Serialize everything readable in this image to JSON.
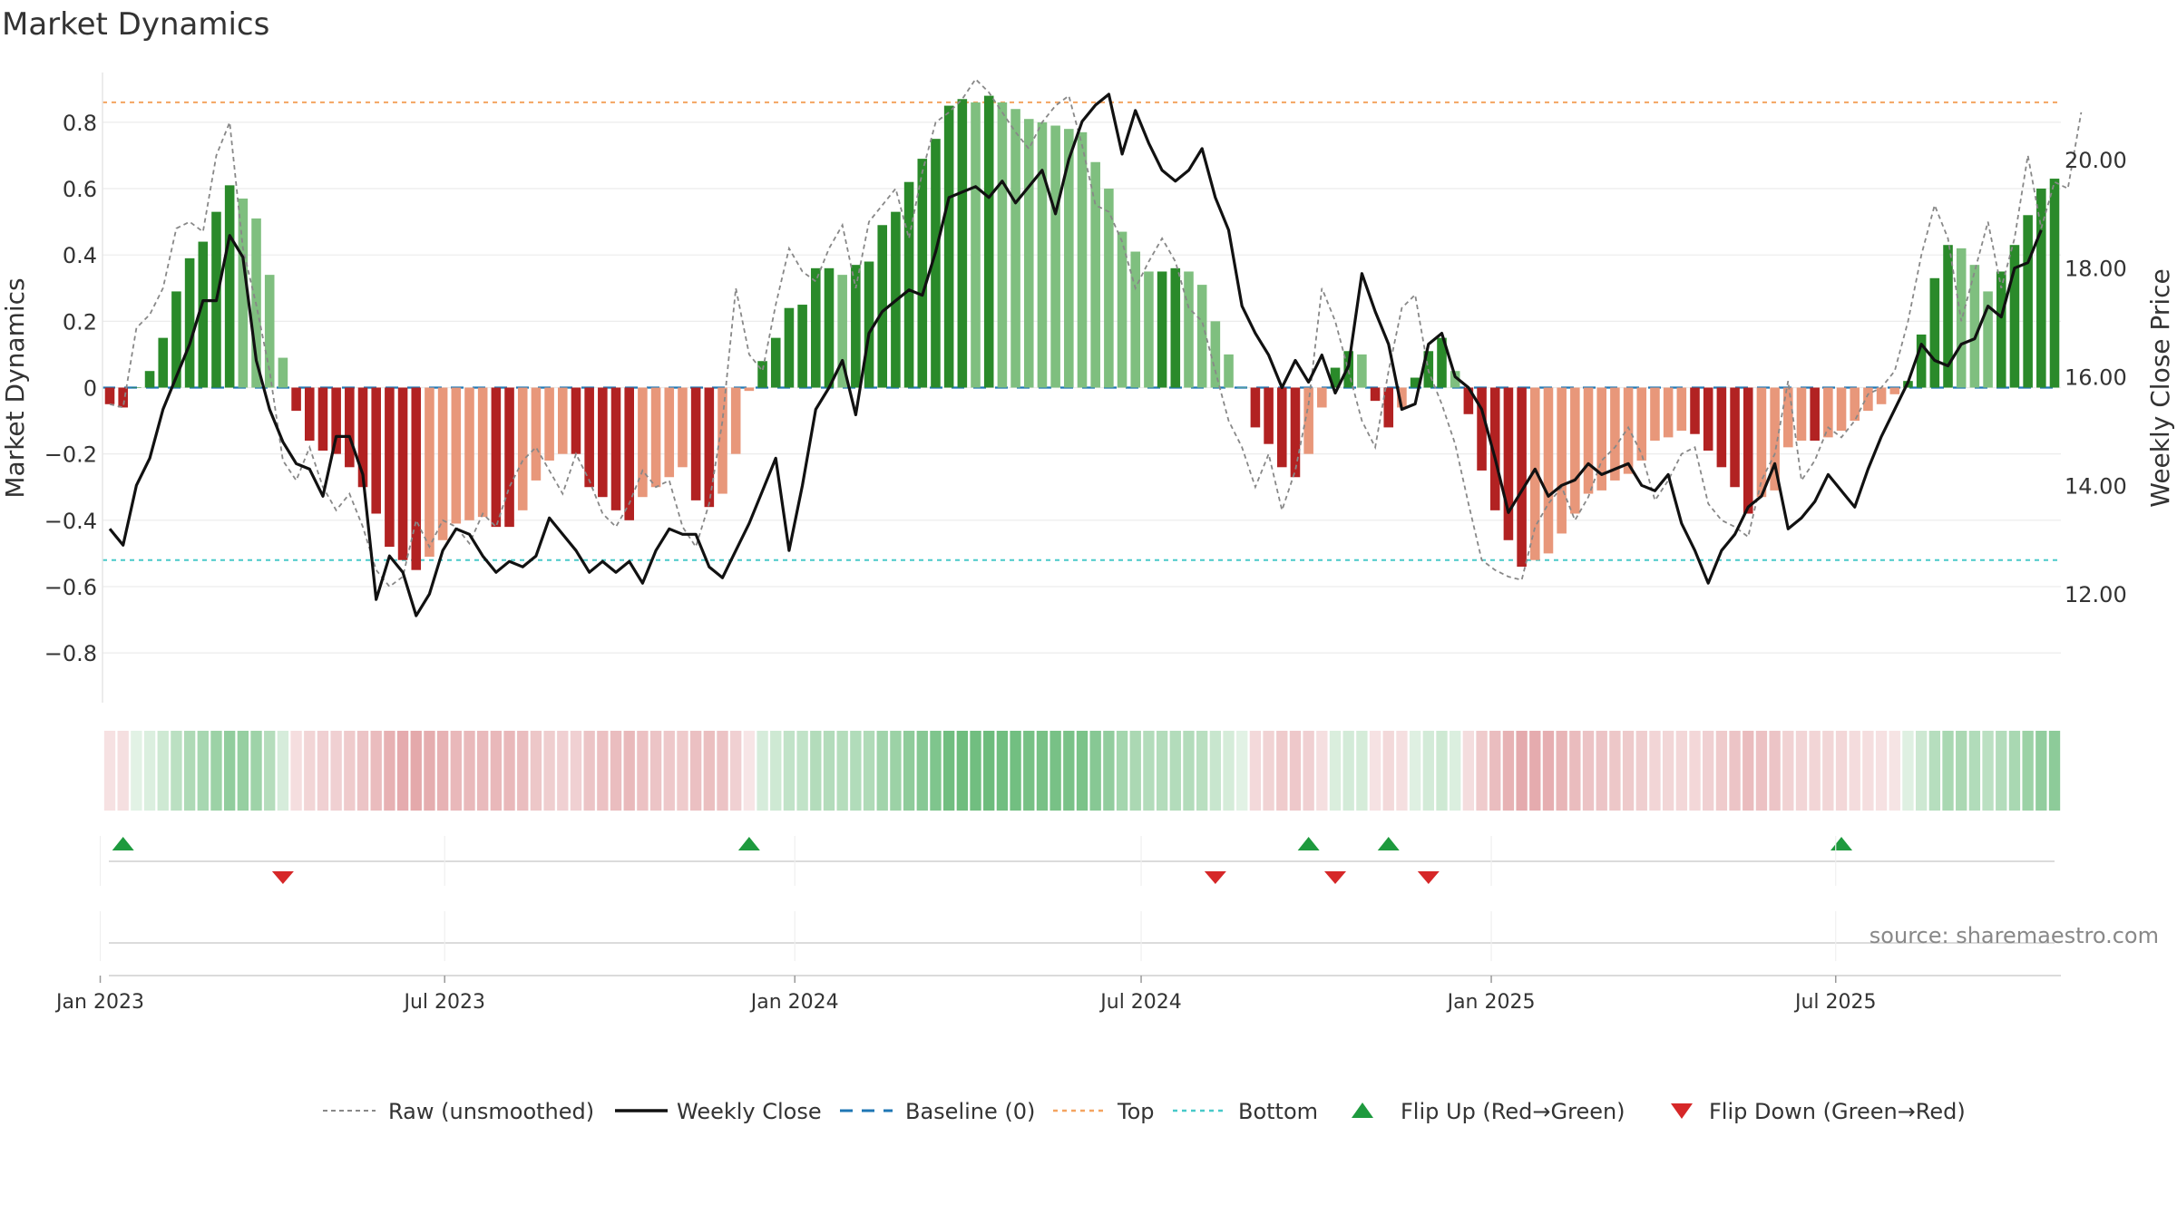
{
  "title": "Market Dynamics",
  "source": "source: sharemaestro.com",
  "chart_data": {
    "type": "bar",
    "title": "Market Dynamics",
    "start_date": "2023-01-06",
    "frequency": "weekly",
    "left_axis": {
      "label": "Market Dynamics",
      "range": [
        -0.95,
        0.95
      ],
      "ticks": [
        0.8,
        0.6,
        0.4,
        0.2,
        0,
        -0.2,
        -0.4,
        -0.6,
        -0.8
      ],
      "tick_labels": [
        "0.8",
        "0.6",
        "0.4",
        "0.2",
        "0",
        "−0.2",
        "−0.4",
        "−0.6",
        "−0.8"
      ]
    },
    "right_axis": {
      "label": "Weekly Close Price",
      "range": [
        10.0,
        21.6
      ],
      "ticks": [
        20.0,
        18.0,
        16.0,
        14.0,
        12.0
      ],
      "tick_labels": [
        "20.00",
        "18.00",
        "16.00",
        "14.00",
        "12.00"
      ]
    },
    "x_axis": {
      "ticks": [
        "2023-01-01",
        "2023-07-01",
        "2024-01-01",
        "2024-07-01",
        "2025-01-01",
        "2025-07-01"
      ],
      "tick_labels": [
        "Jan 2023",
        "Jul 2023",
        "Jan 2024",
        "Jul 2024",
        "Jan 2025",
        "Jul 2025"
      ]
    },
    "top_level": 0.86,
    "bottom_level": -0.52,
    "baseline": 0,
    "smoothed": [
      -0.05,
      -0.06,
      0.0,
      0.05,
      0.15,
      0.29,
      0.39,
      0.44,
      0.53,
      0.61,
      0.57,
      0.51,
      0.34,
      0.09,
      -0.07,
      -0.16,
      -0.19,
      -0.2,
      -0.24,
      -0.3,
      -0.38,
      -0.48,
      -0.52,
      -0.55,
      -0.51,
      -0.46,
      -0.41,
      -0.4,
      -0.39,
      -0.42,
      -0.42,
      -0.37,
      -0.28,
      -0.22,
      -0.2,
      -0.2,
      -0.3,
      -0.33,
      -0.37,
      -0.4,
      -0.33,
      -0.3,
      -0.27,
      -0.24,
      -0.34,
      -0.36,
      -0.32,
      -0.2,
      -0.01,
      0.08,
      0.15,
      0.24,
      0.25,
      0.36,
      0.36,
      0.34,
      0.37,
      0.38,
      0.49,
      0.53,
      0.62,
      0.69,
      0.75,
      0.85,
      0.87,
      0.86,
      0.88,
      0.86,
      0.84,
      0.81,
      0.8,
      0.79,
      0.78,
      0.77,
      0.68,
      0.6,
      0.47,
      0.41,
      0.35,
      0.35,
      0.36,
      0.35,
      0.31,
      0.2,
      0.1,
      0.0,
      -0.12,
      -0.17,
      -0.24,
      -0.27,
      -0.2,
      -0.06,
      0.06,
      0.11,
      0.1,
      -0.04,
      -0.12,
      -0.06,
      0.03,
      0.11,
      0.15,
      0.05,
      -0.08,
      -0.25,
      -0.37,
      -0.46,
      -0.54,
      -0.52,
      -0.5,
      -0.44,
      -0.38,
      -0.32,
      -0.31,
      -0.28,
      -0.26,
      -0.22,
      -0.16,
      -0.15,
      -0.13,
      -0.14,
      -0.19,
      -0.24,
      -0.3,
      -0.38,
      -0.33,
      -0.31,
      -0.18,
      -0.16,
      -0.16,
      -0.15,
      -0.13,
      -0.1,
      -0.07,
      -0.05,
      -0.02,
      0.02,
      0.16,
      0.33,
      0.43,
      0.42,
      0.37,
      0.29,
      0.35,
      0.43,
      0.52,
      0.6,
      0.63
    ],
    "raw": [
      -0.05,
      -0.06,
      0.18,
      0.22,
      0.3,
      0.48,
      0.5,
      0.47,
      0.7,
      0.8,
      0.42,
      0.25,
      0.05,
      -0.22,
      -0.28,
      -0.18,
      -0.3,
      -0.37,
      -0.32,
      -0.42,
      -0.55,
      -0.6,
      -0.57,
      -0.4,
      -0.48,
      -0.4,
      -0.42,
      -0.47,
      -0.38,
      -0.42,
      -0.3,
      -0.22,
      -0.18,
      -0.25,
      -0.32,
      -0.2,
      -0.28,
      -0.38,
      -0.42,
      -0.35,
      -0.25,
      -0.3,
      -0.28,
      -0.42,
      -0.48,
      -0.35,
      -0.1,
      0.3,
      0.1,
      0.05,
      0.25,
      0.42,
      0.35,
      0.32,
      0.42,
      0.49,
      0.3,
      0.5,
      0.55,
      0.6,
      0.45,
      0.65,
      0.8,
      0.83,
      0.87,
      0.93,
      0.89,
      0.83,
      0.77,
      0.72,
      0.8,
      0.85,
      0.88,
      0.73,
      0.55,
      0.53,
      0.44,
      0.3,
      0.38,
      0.45,
      0.38,
      0.24,
      0.2,
      0.05,
      -0.1,
      -0.18,
      -0.3,
      -0.2,
      -0.37,
      -0.25,
      -0.05,
      0.3,
      0.2,
      0.05,
      -0.1,
      -0.18,
      0.05,
      0.24,
      0.28,
      0.05,
      -0.05,
      -0.17,
      -0.35,
      -0.52,
      -0.55,
      -0.57,
      -0.58,
      -0.42,
      -0.35,
      -0.3,
      -0.4,
      -0.33,
      -0.22,
      -0.18,
      -0.12,
      -0.2,
      -0.34,
      -0.28,
      -0.2,
      -0.18,
      -0.35,
      -0.4,
      -0.42,
      -0.45,
      -0.28,
      -0.2,
      0.02,
      -0.28,
      -0.22,
      -0.12,
      -0.15,
      -0.1,
      -0.02,
      0.0,
      0.05,
      0.2,
      0.4,
      0.55,
      0.45,
      0.2,
      0.35,
      0.5,
      0.3,
      0.45,
      0.7,
      0.48,
      0.62,
      0.6,
      0.83
    ],
    "price": [
      13.2,
      12.9,
      14.0,
      14.5,
      15.4,
      16.0,
      16.6,
      17.4,
      17.4,
      18.6,
      18.2,
      16.3,
      15.4,
      14.8,
      14.4,
      14.3,
      13.8,
      14.9,
      14.9,
      14.2,
      11.9,
      12.7,
      12.4,
      11.6,
      12.0,
      12.8,
      13.2,
      13.1,
      12.7,
      12.4,
      12.6,
      12.5,
      12.7,
      13.4,
      13.1,
      12.8,
      12.4,
      12.6,
      12.4,
      12.6,
      12.2,
      12.8,
      13.2,
      13.1,
      13.1,
      12.5,
      12.3,
      12.8,
      13.3,
      13.9,
      14.5,
      12.8,
      14.0,
      15.4,
      15.8,
      16.3,
      15.3,
      16.8,
      17.2,
      17.4,
      17.6,
      17.5,
      18.3,
      19.3,
      19.4,
      19.5,
      19.3,
      19.6,
      19.2,
      19.5,
      19.8,
      19.0,
      20.0,
      20.7,
      21.0,
      21.2,
      20.1,
      20.9,
      20.3,
      19.8,
      19.6,
      19.8,
      20.2,
      19.3,
      18.7,
      17.3,
      16.8,
      16.4,
      15.8,
      16.3,
      15.9,
      16.4,
      15.7,
      16.2,
      17.9,
      17.2,
      16.6,
      15.4,
      15.5,
      16.6,
      16.8,
      16.0,
      15.8,
      15.4,
      14.5,
      13.5,
      13.9,
      14.3,
      13.8,
      14.0,
      14.1,
      14.4,
      14.2,
      14.3,
      14.4,
      14.0,
      13.9,
      14.2,
      13.3,
      12.8,
      12.2,
      12.8,
      13.1,
      13.6,
      13.8,
      14.4,
      13.2,
      13.4,
      13.7,
      14.2,
      13.9,
      13.6,
      14.3,
      14.9,
      15.4,
      15.9,
      16.6,
      16.3,
      16.2,
      16.6,
      16.7,
      17.3,
      17.1,
      18.0,
      18.1,
      18.7
    ],
    "band_colors": {
      "green": "#5db56e",
      "red": "#d4767a"
    },
    "flip_up_dates": [
      "2023-01-13",
      "2023-12-08",
      "2024-09-27",
      "2024-11-08",
      "2025-07-04"
    ],
    "flip_down_dates": [
      "2023-04-07",
      "2024-08-09",
      "2024-10-11",
      "2024-11-29"
    ],
    "colors": {
      "strong_green": "#2a8a2a",
      "light_green": "#7fbf7f",
      "strong_red": "#b22222",
      "light_red": "#e8977a",
      "raw": "#888888",
      "close": "#111111",
      "baseline": "#1f77b4",
      "top": "#f4a460",
      "bottom": "#48c9c9",
      "flip_up": "#1e9a3e",
      "flip_down": "#d62728"
    },
    "legend": [
      {
        "key": "raw",
        "label": "Raw (unsmoothed)"
      },
      {
        "key": "close",
        "label": "Weekly Close"
      },
      {
        "key": "baseline",
        "label": "Baseline (0)"
      },
      {
        "key": "top",
        "label": "Top"
      },
      {
        "key": "bottom",
        "label": "Bottom"
      },
      {
        "key": "flip_up",
        "label": "Flip Up (Red→Green)"
      },
      {
        "key": "flip_down",
        "label": "Flip Down (Green→Red)"
      }
    ],
    "legend_position": "bottom-center"
  }
}
